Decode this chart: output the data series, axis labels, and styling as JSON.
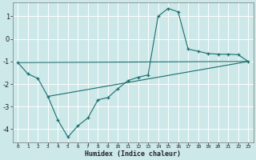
{
  "xlabel": "Humidex (Indice chaleur)",
  "bg_color": "#cce8e8",
  "grid_color": "#ffffff",
  "line_color": "#1a6e6e",
  "xlim": [
    -0.5,
    23.5
  ],
  "ylim": [
    -4.6,
    1.6
  ],
  "xticks": [
    0,
    1,
    2,
    3,
    4,
    5,
    6,
    7,
    8,
    9,
    10,
    11,
    12,
    13,
    14,
    15,
    16,
    17,
    18,
    19,
    20,
    21,
    22,
    23
  ],
  "yticks": [
    -4,
    -3,
    -2,
    -1,
    0,
    1
  ],
  "curve1_x": [
    0,
    1,
    2,
    3,
    4,
    5,
    6,
    7,
    8,
    9,
    10,
    11,
    12,
    13,
    14,
    15,
    16,
    17,
    18,
    19,
    20,
    21,
    22,
    23
  ],
  "curve1_y": [
    -1.05,
    -1.55,
    -1.75,
    -2.55,
    -3.6,
    -4.35,
    -3.85,
    -3.5,
    -2.7,
    -2.6,
    -2.2,
    -1.85,
    -1.7,
    -1.6,
    1.0,
    1.35,
    1.2,
    -0.45,
    -0.55,
    -0.65,
    -0.68,
    -0.68,
    -0.7,
    -1.0
  ],
  "line1_x": [
    0,
    23
  ],
  "line1_y": [
    -1.05,
    -1.0
  ],
  "line2_x": [
    3,
    23
  ],
  "line2_y": [
    -2.55,
    -1.0
  ]
}
